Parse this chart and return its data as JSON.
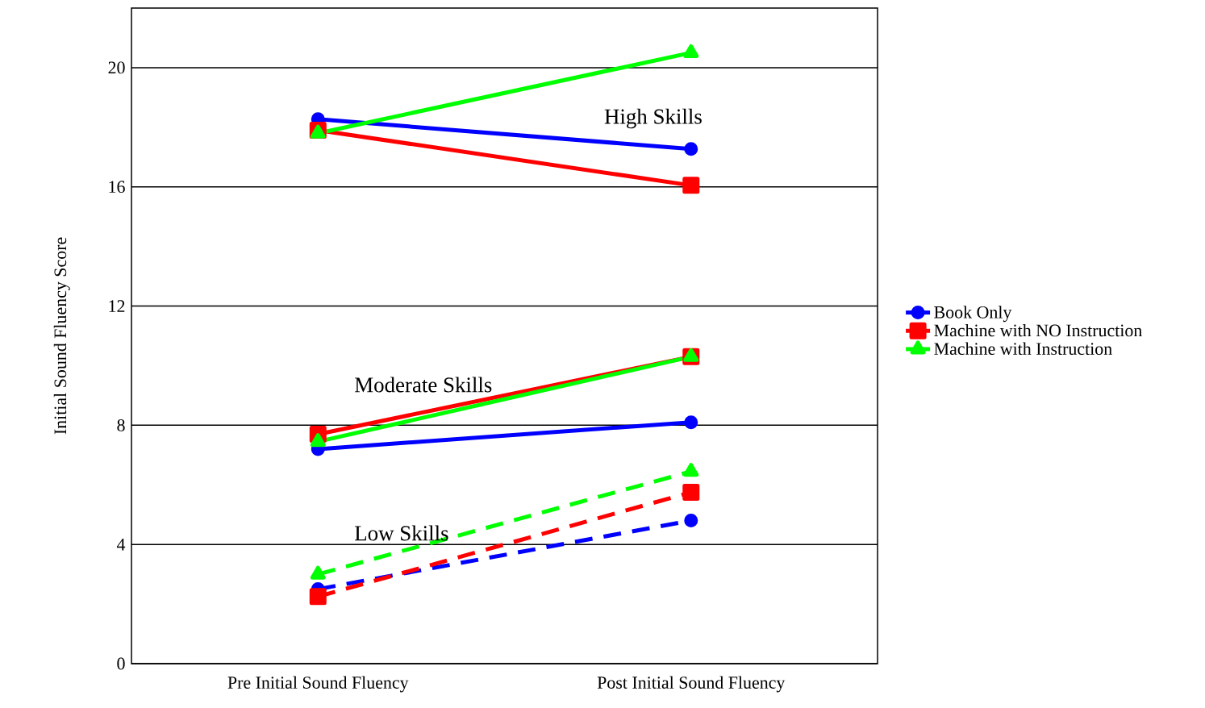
{
  "chart_data": {
    "type": "line",
    "ylabel": "Initial Sound Fluency Score",
    "categories": [
      "Pre Initial Sound Fluency",
      "Post Initial Sound Fluency"
    ],
    "ylim": [
      0,
      22
    ],
    "yticks": [
      0,
      4,
      8,
      12,
      16,
      20
    ],
    "grid": "y",
    "legend": "right",
    "annotations": [
      "High Skills",
      "Moderate Skills",
      "Low Skills"
    ],
    "series": [
      {
        "name": "Book Only",
        "color": "#0000ff",
        "values": [
          18.27,
          17.27
        ],
        "marker": "circle",
        "line_style": "solid"
      },
      {
        "name": "Machine with NO Instruction",
        "color": "#ff0000",
        "values": [
          17.9,
          16.05
        ],
        "marker": "square",
        "line_style": "solid"
      },
      {
        "name": "Machine with Instruction",
        "color": "#00ff00",
        "values": [
          17.8,
          20.5
        ],
        "marker": "triangle",
        "line_style": "solid"
      },
      {
        "color": "#0000ff",
        "values": [
          7.2,
          8.1
        ],
        "marker": "circle",
        "line_style": "solid"
      },
      {
        "color": "#ff0000",
        "values": [
          7.7,
          10.3
        ],
        "marker": "square",
        "line_style": "solid"
      },
      {
        "color": "#00ff00",
        "values": [
          7.45,
          10.3
        ],
        "marker": "triangle",
        "line_style": "solid"
      },
      {
        "color": "#0000ff",
        "values": [
          2.5,
          4.8
        ],
        "marker": "circle",
        "line_style": "dashed"
      },
      {
        "color": "#ff0000",
        "values": [
          2.25,
          5.75
        ],
        "marker": "square",
        "line_style": "dashed"
      },
      {
        "color": "#00ff00",
        "values": [
          3.0,
          6.45
        ],
        "marker": "triangle",
        "line_style": "dashed"
      }
    ]
  }
}
